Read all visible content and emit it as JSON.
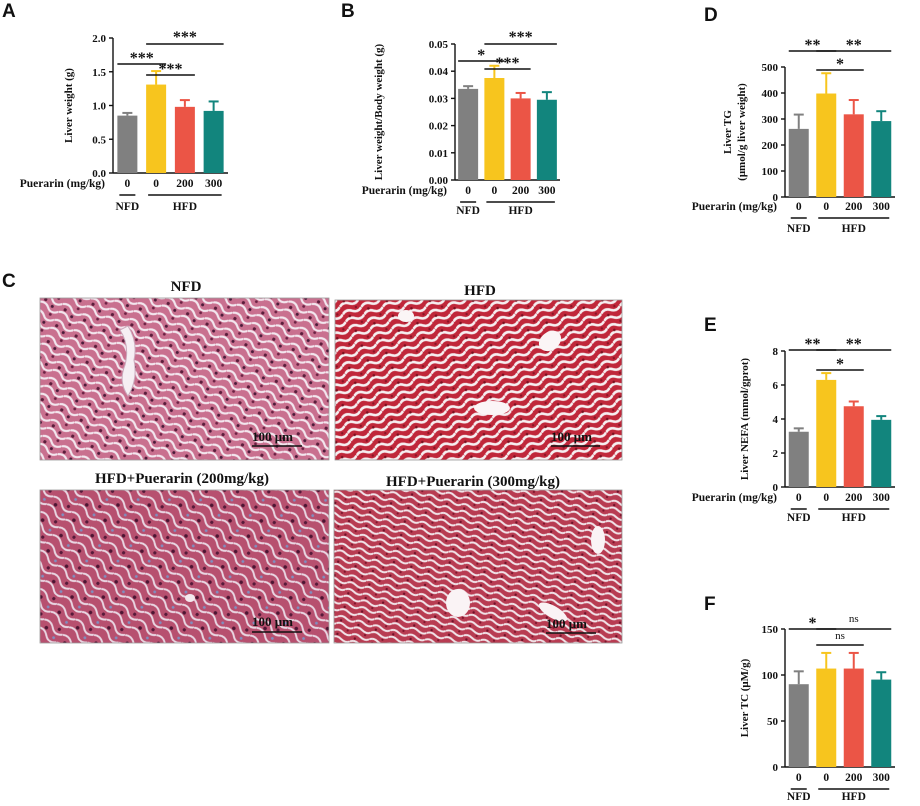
{
  "colors": {
    "NFD": "#808080",
    "HFD": "#f7c51e",
    "P200": "#eb5546",
    "P300": "#12857d"
  },
  "xaxis": {
    "dose_label": "Puerarin (mg/kg)",
    "doses": [
      "0",
      "0",
      "200",
      "300"
    ],
    "group_nfd": "NFD",
    "group_hfd": "HFD"
  },
  "histology": {
    "panel_label": "C",
    "titles": [
      "NFD",
      "HFD",
      "HFD+Puerarin (200mg/kg)",
      "HFD+Puerarin (300mg/kg)"
    ],
    "scale_bar": "100 μm"
  },
  "chart_data": [
    {
      "panel": "A",
      "type": "bar",
      "ylabel": "Liver weight (g)",
      "ylim": [
        0,
        2.0
      ],
      "yticks": [
        "0.0",
        "0.5",
        "1.0",
        "1.5",
        "2.0"
      ],
      "categories": [
        "NFD 0",
        "HFD 0",
        "HFD 200",
        "HFD 300"
      ],
      "values": [
        0.85,
        1.31,
        0.98,
        0.92
      ],
      "errors": [
        0.04,
        0.2,
        0.1,
        0.14
      ],
      "annotations": [
        {
          "from": 0,
          "to": 1,
          "label": "***"
        },
        {
          "from": 1,
          "to": 2,
          "label": "***"
        },
        {
          "from": 1,
          "to": 3,
          "label": "***"
        }
      ]
    },
    {
      "panel": "B",
      "type": "bar",
      "ylabel": "Liver weight/Body weight (g)",
      "ylim": [
        0,
        0.05
      ],
      "yticks": [
        "0.00",
        "0.01",
        "0.02",
        "0.03",
        "0.04",
        "0.05"
      ],
      "categories": [
        "NFD 0",
        "HFD 0",
        "HFD 200",
        "HFD 300"
      ],
      "values": [
        0.0335,
        0.0375,
        0.03,
        0.0295
      ],
      "errors": [
        0.001,
        0.0045,
        0.002,
        0.0028
      ],
      "annotations": [
        {
          "from": 0,
          "to": 1,
          "label": "*"
        },
        {
          "from": 1,
          "to": 2,
          "label": "***"
        },
        {
          "from": 1,
          "to": 3,
          "label": "***"
        }
      ]
    },
    {
      "panel": "D",
      "type": "bar",
      "ylabel": [
        "Liver TG",
        "(μmol/g liver weight)"
      ],
      "ylim": [
        0,
        500
      ],
      "yticks": [
        "0",
        "100",
        "200",
        "300",
        "400",
        "500"
      ],
      "categories": [
        "NFD 0",
        "HFD 0",
        "HFD 200",
        "HFD 300"
      ],
      "values": [
        262,
        398,
        318,
        292
      ],
      "errors": [
        55,
        78,
        55,
        38
      ],
      "annotations": [
        {
          "from": 0,
          "to": 1,
          "label": "**"
        },
        {
          "from": 1,
          "to": 2,
          "label": "*"
        },
        {
          "from": 1,
          "to": 3,
          "label": "**"
        }
      ]
    },
    {
      "panel": "E",
      "type": "bar",
      "ylabel": "Liver NEFA (mmol/gprot)",
      "ylim": [
        0,
        8
      ],
      "yticks": [
        "0",
        "2",
        "4",
        "6",
        "8"
      ],
      "categories": [
        "NFD 0",
        "HFD 0",
        "HFD 200",
        "HFD 300"
      ],
      "values": [
        3.25,
        6.3,
        4.75,
        3.95
      ],
      "errors": [
        0.2,
        0.4,
        0.28,
        0.22
      ],
      "annotations": [
        {
          "from": 0,
          "to": 1,
          "label": "**"
        },
        {
          "from": 1,
          "to": 2,
          "label": "*"
        },
        {
          "from": 1,
          "to": 3,
          "label": "**"
        }
      ]
    },
    {
      "panel": "F",
      "type": "bar",
      "ylabel": "Liver TC (μM/g)",
      "ylim": [
        0,
        150
      ],
      "yticks": [
        "0",
        "50",
        "100",
        "150"
      ],
      "categories": [
        "NFD 0",
        "HFD 0",
        "HFD 200",
        "HFD 300"
      ],
      "values": [
        90,
        107,
        107,
        95
      ],
      "errors": [
        14,
        17,
        17,
        8
      ],
      "annotations": [
        {
          "from": 0,
          "to": 1,
          "label": "*"
        },
        {
          "from": 1,
          "to": 2,
          "label": "ns"
        },
        {
          "from": 1,
          "to": 3,
          "label": "ns"
        }
      ]
    }
  ]
}
